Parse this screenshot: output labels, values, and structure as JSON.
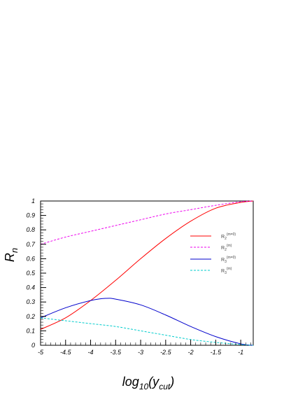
{
  "chart_data": {
    "type": "line",
    "xlabel": {
      "base": "log",
      "sub1": "10",
      "paren_open": "(y",
      "sub2": "cut",
      "paren_close": ")"
    },
    "ylabel": {
      "base": "R",
      "sub": "n"
    },
    "xlim": [
      -5.0,
      -0.75
    ],
    "ylim": [
      0,
      1
    ],
    "xticks": [
      -5,
      -4.5,
      -4,
      -3.5,
      -3,
      -2.5,
      -2,
      -1.5,
      -1
    ],
    "xtick_labels": [
      "-5",
      "-4.5",
      "-4",
      "-3.5",
      "-3",
      "-2.5",
      "-2",
      "-1.5",
      "-1"
    ],
    "yticks": [
      0,
      0.1,
      0.2,
      0.3,
      0.4,
      0.5,
      0.6,
      0.7,
      0.8,
      0.9,
      1
    ],
    "ytick_labels": [
      "0",
      "0.1",
      "0.2",
      "0.3",
      "0.4",
      "0.5",
      "0.6",
      "0.7",
      "0.8",
      "0.9",
      "1"
    ],
    "grid": false,
    "legend_position": "right",
    "series": [
      {
        "name": "R2(m=0)",
        "label_base": "R",
        "label_sub": "2",
        "label_sup": "(m=0)",
        "color": "#ff0000",
        "dash": "solid",
        "x": [
          -5.0,
          -4.5,
          -4.0,
          -3.5,
          -3.0,
          -2.5,
          -2.0,
          -1.5,
          -1.0,
          -0.75
        ],
        "y": [
          0.11,
          0.19,
          0.31,
          0.45,
          0.6,
          0.74,
          0.86,
          0.95,
          0.99,
          1.0
        ]
      },
      {
        "name": "R2(m)",
        "label_base": "R",
        "label_sub": "2",
        "label_sup": "(m)",
        "color": "#ee00ee",
        "dash": "dashed",
        "x": [
          -5.0,
          -4.5,
          -4.0,
          -3.5,
          -3.0,
          -2.5,
          -2.0,
          -1.5,
          -1.0,
          -0.75
        ],
        "y": [
          0.7,
          0.75,
          0.79,
          0.83,
          0.87,
          0.91,
          0.94,
          0.97,
          0.995,
          1.0
        ]
      },
      {
        "name": "R3(m=0)",
        "label_base": "R",
        "label_sub": "3",
        "label_sup": "(m=0)",
        "color": "#0000cc",
        "dash": "solid",
        "x": [
          -5.0,
          -4.5,
          -4.0,
          -3.7,
          -3.5,
          -3.0,
          -2.5,
          -2.0,
          -1.5,
          -1.0,
          -0.75
        ],
        "y": [
          0.19,
          0.26,
          0.31,
          0.325,
          0.32,
          0.28,
          0.21,
          0.13,
          0.06,
          0.01,
          0.0
        ]
      },
      {
        "name": "R3(m)",
        "label_base": "R",
        "label_sub": "3",
        "label_sup": "(m)",
        "color": "#00cccc",
        "dash": "dashed",
        "x": [
          -5.0,
          -4.5,
          -4.0,
          -3.5,
          -3.0,
          -2.5,
          -2.0,
          -1.5,
          -1.0,
          -0.75
        ],
        "y": [
          0.19,
          0.17,
          0.15,
          0.13,
          0.1,
          0.07,
          0.04,
          0.02,
          0.005,
          0.0
        ]
      }
    ]
  }
}
